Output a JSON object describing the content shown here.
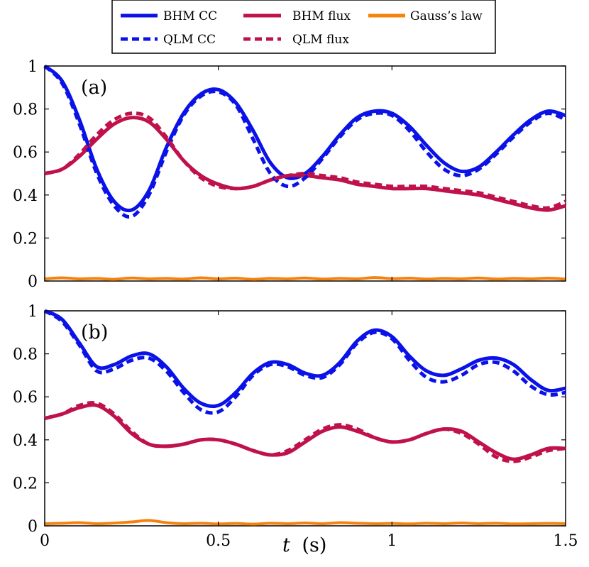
{
  "legend": {
    "entries": [
      {
        "label": "BHM CC",
        "color": "#0a12e8",
        "dash": "solid"
      },
      {
        "label": "BHM flux",
        "color": "#c0124a",
        "dash": "solid"
      },
      {
        "label": "Gauss’s law",
        "color": "#f5820d",
        "dash": "solid"
      },
      {
        "label": "QLM CC",
        "color": "#0a12e8",
        "dash": "dashed"
      },
      {
        "label": "QLM flux",
        "color": "#c0124a",
        "dash": "dashed"
      }
    ]
  },
  "x_axis": {
    "label_symbol": "t",
    "label_unit": "(s)",
    "ticks": [
      "0",
      "0.5",
      "1",
      "1.5"
    ]
  },
  "chart_data": [
    {
      "type": "line",
      "panel_label": "(a)",
      "xlim": [
        0,
        1.5
      ],
      "ylim": [
        0,
        1
      ],
      "y_ticks": [
        "0",
        "0.2",
        "0.4",
        "0.6",
        "0.8",
        "1"
      ],
      "x": [
        0,
        0.05,
        0.1,
        0.15,
        0.2,
        0.25,
        0.3,
        0.35,
        0.4,
        0.45,
        0.5,
        0.55,
        0.6,
        0.65,
        0.7,
        0.75,
        0.8,
        0.85,
        0.9,
        0.95,
        1.0,
        1.05,
        1.1,
        1.15,
        1.2,
        1.25,
        1.3,
        1.35,
        1.4,
        1.45,
        1.5
      ],
      "series": [
        {
          "name": "BHM CC",
          "values": [
            1.0,
            0.93,
            0.75,
            0.52,
            0.37,
            0.33,
            0.42,
            0.62,
            0.78,
            0.87,
            0.89,
            0.83,
            0.7,
            0.55,
            0.48,
            0.5,
            0.58,
            0.68,
            0.76,
            0.79,
            0.78,
            0.72,
            0.63,
            0.55,
            0.51,
            0.53,
            0.6,
            0.68,
            0.75,
            0.79,
            0.77
          ]
        },
        {
          "name": "QLM CC",
          "values": [
            1.0,
            0.92,
            0.73,
            0.5,
            0.35,
            0.3,
            0.4,
            0.6,
            0.77,
            0.86,
            0.88,
            0.82,
            0.66,
            0.5,
            0.44,
            0.48,
            0.57,
            0.67,
            0.75,
            0.78,
            0.77,
            0.7,
            0.6,
            0.52,
            0.49,
            0.52,
            0.59,
            0.67,
            0.74,
            0.78,
            0.75
          ]
        },
        {
          "name": "BHM flux",
          "values": [
            0.5,
            0.52,
            0.58,
            0.66,
            0.73,
            0.76,
            0.74,
            0.66,
            0.56,
            0.49,
            0.45,
            0.43,
            0.44,
            0.47,
            0.49,
            0.49,
            0.48,
            0.47,
            0.45,
            0.44,
            0.43,
            0.43,
            0.43,
            0.42,
            0.41,
            0.4,
            0.38,
            0.36,
            0.34,
            0.33,
            0.35
          ]
        },
        {
          "name": "QLM flux",
          "values": [
            0.5,
            0.52,
            0.59,
            0.68,
            0.75,
            0.78,
            0.76,
            0.67,
            0.56,
            0.48,
            0.44,
            0.43,
            0.44,
            0.47,
            0.49,
            0.5,
            0.49,
            0.48,
            0.46,
            0.45,
            0.44,
            0.44,
            0.44,
            0.43,
            0.42,
            0.41,
            0.39,
            0.37,
            0.35,
            0.34,
            0.37
          ]
        },
        {
          "name": "Gauss’s law",
          "values": [
            0.01,
            0.015,
            0.01,
            0.012,
            0.008,
            0.014,
            0.01,
            0.012,
            0.009,
            0.015,
            0.01,
            0.013,
            0.008,
            0.012,
            0.01,
            0.014,
            0.009,
            0.012,
            0.01,
            0.016,
            0.011,
            0.013,
            0.009,
            0.012,
            0.01,
            0.014,
            0.009,
            0.012,
            0.01,
            0.013,
            0.009
          ]
        }
      ]
    },
    {
      "type": "line",
      "panel_label": "(b)",
      "xlim": [
        0,
        1.5
      ],
      "ylim": [
        0,
        1
      ],
      "y_ticks": [
        "0",
        "0.2",
        "0.4",
        "0.6",
        "0.8",
        "1"
      ],
      "x": [
        0,
        0.05,
        0.1,
        0.15,
        0.2,
        0.25,
        0.3,
        0.35,
        0.4,
        0.45,
        0.5,
        0.55,
        0.6,
        0.65,
        0.7,
        0.75,
        0.8,
        0.85,
        0.9,
        0.95,
        1.0,
        1.05,
        1.1,
        1.15,
        1.2,
        1.25,
        1.3,
        1.35,
        1.4,
        1.45,
        1.5
      ],
      "series": [
        {
          "name": "BHM CC",
          "values": [
            1.0,
            0.96,
            0.85,
            0.74,
            0.75,
            0.79,
            0.8,
            0.74,
            0.64,
            0.57,
            0.56,
            0.62,
            0.71,
            0.76,
            0.75,
            0.71,
            0.7,
            0.76,
            0.86,
            0.91,
            0.88,
            0.79,
            0.72,
            0.7,
            0.73,
            0.77,
            0.78,
            0.75,
            0.68,
            0.63,
            0.64
          ]
        },
        {
          "name": "QLM CC",
          "values": [
            1.0,
            0.95,
            0.84,
            0.72,
            0.73,
            0.77,
            0.78,
            0.72,
            0.62,
            0.54,
            0.53,
            0.6,
            0.7,
            0.75,
            0.74,
            0.7,
            0.69,
            0.75,
            0.85,
            0.9,
            0.87,
            0.77,
            0.69,
            0.67,
            0.7,
            0.75,
            0.76,
            0.72,
            0.65,
            0.61,
            0.62
          ]
        },
        {
          "name": "BHM flux",
          "values": [
            0.5,
            0.52,
            0.55,
            0.56,
            0.51,
            0.43,
            0.38,
            0.37,
            0.38,
            0.4,
            0.4,
            0.38,
            0.35,
            0.33,
            0.34,
            0.39,
            0.44,
            0.46,
            0.44,
            0.41,
            0.39,
            0.4,
            0.43,
            0.45,
            0.44,
            0.39,
            0.34,
            0.31,
            0.33,
            0.36,
            0.36
          ]
        },
        {
          "name": "QLM flux",
          "values": [
            0.5,
            0.52,
            0.56,
            0.57,
            0.52,
            0.44,
            0.38,
            0.37,
            0.38,
            0.4,
            0.4,
            0.38,
            0.35,
            0.33,
            0.35,
            0.4,
            0.45,
            0.47,
            0.45,
            0.41,
            0.39,
            0.4,
            0.43,
            0.45,
            0.43,
            0.38,
            0.32,
            0.3,
            0.32,
            0.35,
            0.36
          ]
        },
        {
          "name": "Gauss’s law",
          "values": [
            0.01,
            0.012,
            0.015,
            0.01,
            0.013,
            0.018,
            0.025,
            0.015,
            0.01,
            0.012,
            0.009,
            0.011,
            0.008,
            0.012,
            0.01,
            0.013,
            0.01,
            0.015,
            0.012,
            0.01,
            0.011,
            0.009,
            0.012,
            0.01,
            0.013,
            0.01,
            0.012,
            0.009,
            0.01,
            0.011,
            0.01
          ]
        }
      ]
    }
  ]
}
